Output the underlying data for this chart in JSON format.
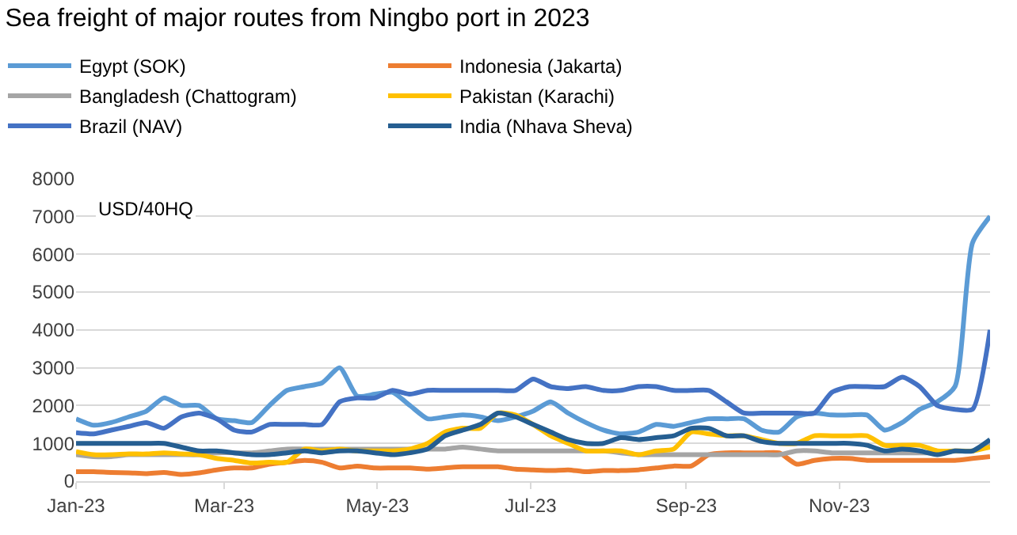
{
  "chart_data": {
    "type": "line",
    "title": "Sea freight of major routes from Ningbo port in 2023",
    "ylabel": "USD/40HQ",
    "x": [
      "2023-01-01",
      "2023-01-08",
      "2023-01-15",
      "2023-01-22",
      "2023-01-29",
      "2023-02-05",
      "2023-02-12",
      "2023-02-19",
      "2023-02-26",
      "2023-03-05",
      "2023-03-12",
      "2023-03-19",
      "2023-03-26",
      "2023-04-02",
      "2023-04-09",
      "2023-04-16",
      "2023-04-23",
      "2023-04-30",
      "2023-05-07",
      "2023-05-14",
      "2023-05-21",
      "2023-05-28",
      "2023-06-04",
      "2023-06-11",
      "2023-06-18",
      "2023-06-25",
      "2023-07-02",
      "2023-07-09",
      "2023-07-16",
      "2023-07-23",
      "2023-07-30",
      "2023-08-06",
      "2023-08-13",
      "2023-08-20",
      "2023-08-27",
      "2023-09-03",
      "2023-09-10",
      "2023-09-17",
      "2023-09-24",
      "2023-10-01",
      "2023-10-08",
      "2023-10-15",
      "2023-10-22",
      "2023-10-29",
      "2023-11-05",
      "2023-11-12",
      "2023-11-19",
      "2023-11-26",
      "2023-12-03",
      "2023-12-10",
      "2023-12-17",
      "2023-12-24",
      "2023-12-31"
    ],
    "series": [
      {
        "name": "Egypt (SOK)",
        "color": "#5b9bd5",
        "values": [
          1650,
          1480,
          1550,
          1700,
          1850,
          2200,
          2000,
          2000,
          1650,
          1600,
          1550,
          2000,
          2400,
          2500,
          2600,
          3000,
          2250,
          2300,
          2350,
          2000,
          1650,
          1700,
          1750,
          1700,
          1600,
          1700,
          1850,
          2100,
          1800,
          1550,
          1350,
          1250,
          1300,
          1500,
          1450,
          1550,
          1650,
          1650,
          1650,
          1350,
          1300,
          1700,
          1800,
          1750,
          1750,
          1750,
          1350,
          1550,
          1900,
          2100,
          2500,
          6300,
          7000
        ]
      },
      {
        "name": "Indonesia (Jakarta)",
        "color": "#ed7d31",
        "values": [
          250,
          250,
          230,
          220,
          200,
          230,
          180,
          220,
          300,
          350,
          350,
          450,
          500,
          550,
          500,
          350,
          400,
          350,
          350,
          350,
          320,
          350,
          380,
          380,
          380,
          320,
          300,
          280,
          300,
          250,
          280,
          280,
          300,
          350,
          400,
          400,
          700,
          750,
          750,
          750,
          750,
          450,
          550,
          600,
          600,
          550,
          550,
          550,
          550,
          550,
          550,
          600,
          650
        ]
      },
      {
        "name": "Bangladesh (Chattogram)",
        "color": "#a5a5a5",
        "values": [
          700,
          650,
          650,
          700,
          700,
          700,
          700,
          700,
          750,
          750,
          750,
          800,
          850,
          850,
          850,
          850,
          850,
          850,
          850,
          850,
          850,
          850,
          900,
          850,
          800,
          800,
          800,
          800,
          800,
          800,
          800,
          750,
          700,
          700,
          700,
          700,
          700,
          700,
          700,
          700,
          700,
          800,
          800,
          750,
          750,
          750,
          750,
          750,
          750,
          750,
          800,
          800,
          1000
        ]
      },
      {
        "name": "Pakistan (Karachi)",
        "color": "#ffc000",
        "values": [
          780,
          700,
          700,
          720,
          720,
          750,
          720,
          700,
          600,
          550,
          480,
          500,
          500,
          850,
          800,
          850,
          800,
          800,
          800,
          850,
          1000,
          1300,
          1400,
          1400,
          1800,
          1750,
          1500,
          1200,
          1000,
          800,
          800,
          800,
          700,
          800,
          850,
          1300,
          1250,
          1200,
          1200,
          1100,
          1000,
          1000,
          1200,
          1200,
          1200,
          1200,
          950,
          950,
          950,
          800,
          800,
          800,
          900
        ]
      },
      {
        "name": "Brazil (NAV)",
        "color": "#4472c4",
        "values": [
          1280,
          1250,
          1350,
          1450,
          1550,
          1400,
          1700,
          1800,
          1650,
          1350,
          1300,
          1500,
          1500,
          1500,
          1500,
          2100,
          2200,
          2200,
          2400,
          2300,
          2400,
          2400,
          2400,
          2400,
          2400,
          2400,
          2700,
          2500,
          2450,
          2500,
          2400,
          2400,
          2500,
          2500,
          2400,
          2400,
          2400,
          2100,
          1800,
          1800,
          1800,
          1800,
          1800,
          2350,
          2500,
          2500,
          2500,
          2750,
          2500,
          2000,
          1900,
          1900,
          4000
        ]
      },
      {
        "name": "India (Nhava Sheva)",
        "color": "#255e91",
        "values": [
          1000,
          1000,
          1000,
          1000,
          1000,
          1000,
          900,
          800,
          800,
          750,
          700,
          700,
          750,
          800,
          750,
          800,
          800,
          750,
          700,
          750,
          850,
          1200,
          1350,
          1500,
          1800,
          1700,
          1500,
          1300,
          1100,
          1000,
          1000,
          1150,
          1100,
          1150,
          1200,
          1400,
          1400,
          1200,
          1200,
          1050,
          1000,
          1000,
          1000,
          1000,
          1000,
          950,
          800,
          850,
          800,
          700,
          800,
          800,
          1100
        ]
      }
    ],
    "xlim": [
      "2023-01-01",
      "2023-12-31"
    ],
    "xticks": [
      {
        "value": "2023-01-01",
        "label": "Jan-23"
      },
      {
        "value": "2023-03-01",
        "label": "Mar-23"
      },
      {
        "value": "2023-05-01",
        "label": "May-23"
      },
      {
        "value": "2023-07-01",
        "label": "Jul-23"
      },
      {
        "value": "2023-09-01",
        "label": "Sep-23"
      },
      {
        "value": "2023-11-01",
        "label": "Nov-23"
      }
    ],
    "ylim": [
      0,
      8000
    ],
    "yticks": [
      0,
      1000,
      2000,
      3000,
      4000,
      5000,
      6000,
      7000,
      8000
    ],
    "grid": "y",
    "legend": "top",
    "marker": "none",
    "line_style": "solid"
  }
}
